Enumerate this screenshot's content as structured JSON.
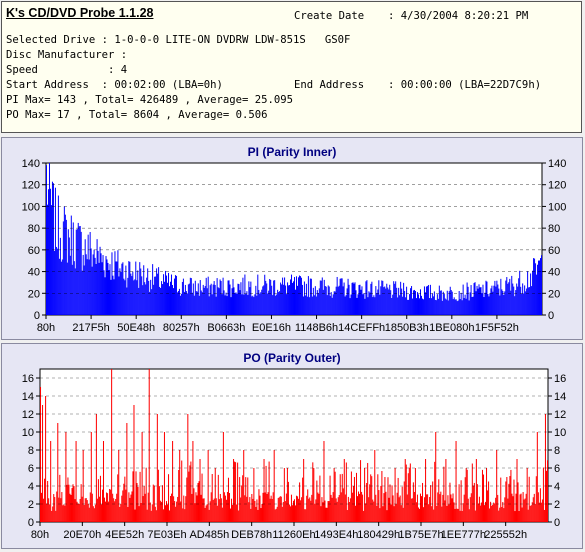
{
  "app_title": "K's CD/DVD Probe 1.1.28",
  "info": {
    "create_date_label": "Create Date",
    "create_date_value": ": 4/30/2004 8:20:21 PM",
    "line_drive": "Selected Drive : 1-0-0-0 LITE-ON DVDRW LDW-851S   GS0F",
    "line_manufacturer": "Disc Manufacturer :",
    "line_speed": "Speed           : 4",
    "line_start": "Start Address  : 00:02:00 (LBA=0h)",
    "end_address_label": "End Address",
    "end_address_value": ": 00:00:00 (LBA=22D7C9h)",
    "line_pi": "PI Max= 143 , Total= 426489 , Average= 25.095",
    "line_po": "PO Max= 17 , Total= 8604 , Average= 0.506"
  },
  "colors": {
    "pi": "#0000ff",
    "po": "#ff0000",
    "panel": "#e6e6f4",
    "title": "#000080",
    "info_bg": "#fffff0"
  },
  "chart_data": [
    {
      "id": "pi",
      "type": "bar",
      "title": "PI (Parity Inner)",
      "ylim": [
        0,
        140
      ],
      "yticks": [
        0,
        20,
        40,
        60,
        80,
        100,
        120,
        140
      ],
      "xtick_labels": [
        "80h",
        "217F5h",
        "50E48h",
        "80257h",
        "B0663h",
        "E0E16h",
        "1148B6h",
        "14CEFFh",
        "1850B3h",
        "1BE080h",
        "1F5F52h"
      ],
      "grid": true,
      "envelope_x": [
        0,
        0.005,
        0.02,
        0.05,
        0.1,
        0.15,
        0.2,
        0.25,
        0.3,
        0.4,
        0.5,
        0.6,
        0.7,
        0.8,
        0.9,
        0.95,
        0.98,
        1.0
      ],
      "envelope_y": [
        143,
        120,
        90,
        78,
        62,
        48,
        40,
        32,
        28,
        30,
        30,
        28,
        25,
        22,
        26,
        32,
        40,
        52
      ],
      "samples": 500
    },
    {
      "id": "po",
      "type": "bar",
      "title": "PO (Parity Outer)",
      "ylim": [
        0,
        17
      ],
      "yticks": [
        0,
        2,
        4,
        6,
        8,
        10,
        12,
        14,
        16
      ],
      "xtick_labels": [
        "80h",
        "20E70h",
        "4EE52h",
        "7E03Eh",
        "AD485h",
        "DEB78h",
        "11260Eh",
        "1493E4h",
        "180429h",
        "1B75E7h",
        "1EE777h",
        "225552h"
      ],
      "grid": true,
      "base_level": 1.2,
      "spikes": [
        [
          0.0,
          15
        ],
        [
          0.005,
          13
        ],
        [
          0.01,
          14
        ],
        [
          0.02,
          9
        ],
        [
          0.035,
          11
        ],
        [
          0.05,
          10
        ],
        [
          0.07,
          9
        ],
        [
          0.085,
          8
        ],
        [
          0.1,
          10
        ],
        [
          0.11,
          12
        ],
        [
          0.125,
          9
        ],
        [
          0.14,
          17
        ],
        [
          0.155,
          8
        ],
        [
          0.17,
          11
        ],
        [
          0.185,
          13
        ],
        [
          0.2,
          10
        ],
        [
          0.215,
          17
        ],
        [
          0.23,
          12
        ],
        [
          0.245,
          10
        ],
        [
          0.26,
          9
        ],
        [
          0.275,
          8
        ],
        [
          0.29,
          12
        ],
        [
          0.3,
          9
        ],
        [
          0.315,
          7
        ],
        [
          0.33,
          8
        ],
        [
          0.345,
          6
        ],
        [
          0.36,
          10
        ],
        [
          0.38,
          7
        ],
        [
          0.4,
          8
        ],
        [
          0.42,
          6
        ],
        [
          0.44,
          7
        ],
        [
          0.46,
          8
        ],
        [
          0.48,
          6
        ],
        [
          0.5,
          5
        ],
        [
          0.52,
          7
        ],
        [
          0.54,
          6
        ],
        [
          0.56,
          9
        ],
        [
          0.58,
          6
        ],
        [
          0.6,
          7
        ],
        [
          0.62,
          5
        ],
        [
          0.64,
          6
        ],
        [
          0.66,
          8
        ],
        [
          0.68,
          5
        ],
        [
          0.7,
          6
        ],
        [
          0.72,
          7
        ],
        [
          0.74,
          6
        ],
        [
          0.76,
          7
        ],
        [
          0.78,
          10
        ],
        [
          0.8,
          7
        ],
        [
          0.82,
          9
        ],
        [
          0.84,
          6
        ],
        [
          0.86,
          7
        ],
        [
          0.88,
          6
        ],
        [
          0.9,
          8
        ],
        [
          0.92,
          5
        ],
        [
          0.94,
          7
        ],
        [
          0.96,
          6
        ],
        [
          0.98,
          10
        ],
        [
          0.995,
          12
        ]
      ],
      "samples": 500
    }
  ]
}
